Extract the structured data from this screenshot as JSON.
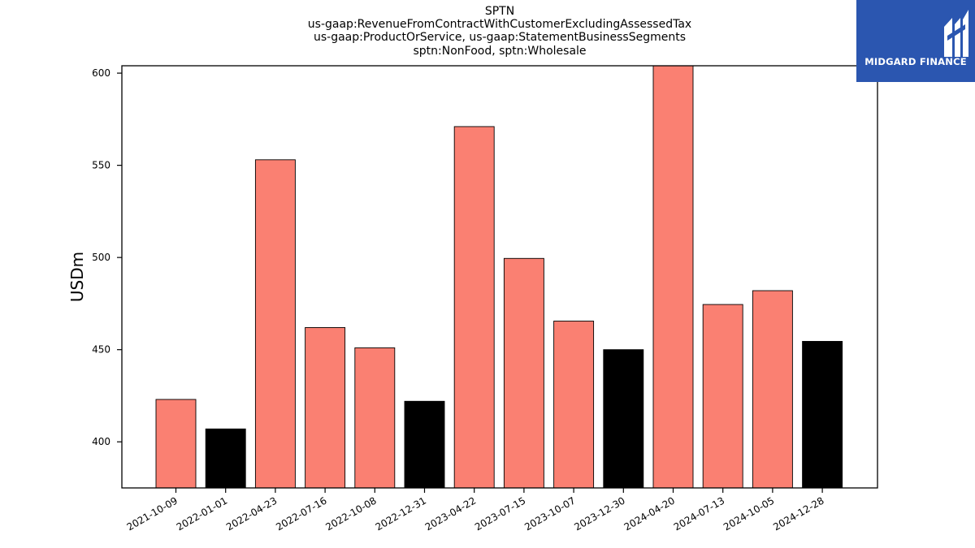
{
  "chart_data": {
    "type": "bar",
    "title_lines": [
      "SPTN",
      "us-gaap:RevenueFromContractWithCustomerExcludingAssessedTax",
      "us-gaap:ProductOrService, us-gaap:StatementBusinessSegments",
      "sptn:NonFood, sptn:Wholesale"
    ],
    "ylabel": "USDm",
    "xlabel": "",
    "ylim": [
      375,
      604
    ],
    "yticks": [
      400,
      450,
      500,
      550,
      600
    ],
    "categories": [
      "2021-10-09",
      "2022-01-01",
      "2022-04-23",
      "2022-07-16",
      "2022-10-08",
      "2022-12-31",
      "2023-04-22",
      "2023-07-15",
      "2023-10-07",
      "2023-12-30",
      "2024-04-20",
      "2024-07-13",
      "2024-10-05",
      "2024-12-28"
    ],
    "values": [
      423,
      407,
      553,
      462,
      451,
      422,
      571,
      499.5,
      465.5,
      450,
      604,
      474.5,
      482,
      454.5
    ],
    "bar_colors": [
      "#fa8072",
      "#000000",
      "#fa8072",
      "#fa8072",
      "#fa8072",
      "#000000",
      "#fa8072",
      "#fa8072",
      "#fa8072",
      "#000000",
      "#fa8072",
      "#fa8072",
      "#fa8072",
      "#000000"
    ],
    "grid": false
  },
  "logo": {
    "text": "MIDGARD FINANCE",
    "background": "#2b56b0"
  }
}
